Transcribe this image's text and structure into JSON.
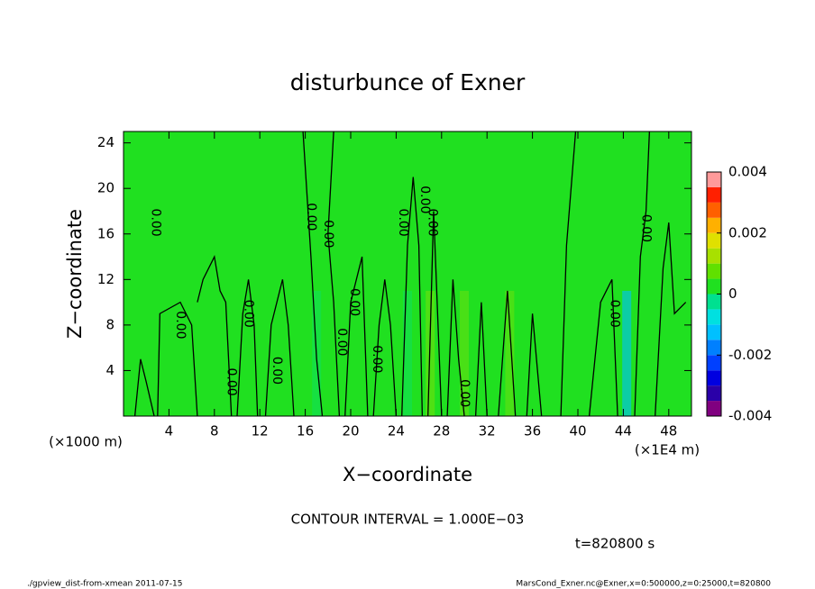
{
  "chart_data": {
    "type": "contour",
    "title": "disturbunce of Exner",
    "x_label": "X−coordinate",
    "y_label": "Z−coordinate",
    "x_unit": "(×1E4 m)",
    "y_unit": "(×1000 m)",
    "xlim": [
      0,
      50
    ],
    "xticks": [
      4,
      8,
      12,
      16,
      20,
      24,
      28,
      32,
      36,
      40,
      44,
      48
    ],
    "ylim": [
      0,
      25
    ],
    "yticks": [
      4,
      8,
      12,
      16,
      20,
      24
    ],
    "levels": [
      -0.004,
      -0.0035,
      -0.003,
      -0.0025,
      -0.002,
      -0.0015,
      -0.001,
      -0.0005,
      0,
      0.0005,
      0.001,
      0.0015,
      0.002,
      0.0025,
      0.003,
      0.0035,
      0.004
    ],
    "colors": [
      "#800080",
      "#2a00a8",
      "#0000e0",
      "#0040ff",
      "#0080ff",
      "#00c0ff",
      "#00e0e0",
      "#00e090",
      "#20e020",
      "#60e000",
      "#a8e000",
      "#e0e000",
      "#ffb000",
      "#ff6000",
      "#ff2000",
      "#ff9a9a"
    ],
    "colorbar_ticks": [
      -0.004,
      -0.002,
      0,
      0.002,
      0.004
    ],
    "contour_labels": [
      "0.00",
      "0.00",
      "0.00",
      "0.00",
      "0.00",
      "0.00",
      "0.00",
      "0.00",
      "0.00",
      "0.00",
      "0.00",
      "0.00",
      "0.00",
      "0.00",
      "0.00",
      "0.00"
    ],
    "annotation": "CONTOUR INTERVAL = 1.000E−03",
    "time": "t=820800 s",
    "footer_left": "./gpview_dist-from-xmean  2011-07-15",
    "footer_right": "MarsCond_Exner.nc@Exner,x=0:500000,z=0:25000,t=820800"
  }
}
